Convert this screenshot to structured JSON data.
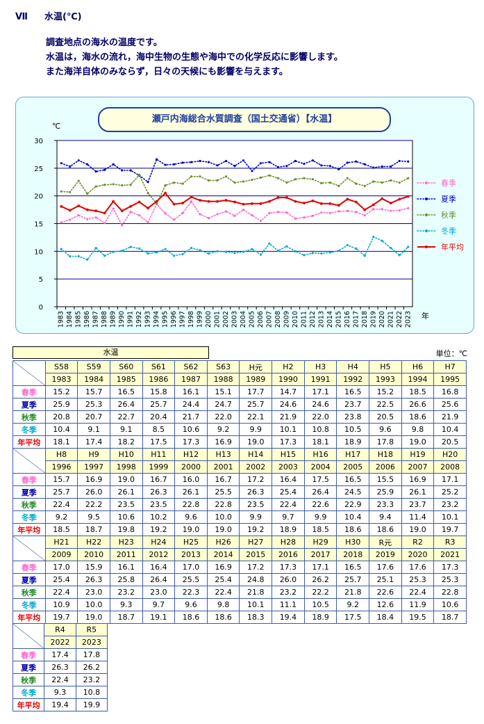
{
  "section": {
    "number": "Ⅶ",
    "title": "水温(℃)"
  },
  "intro": [
    "調査地点の海水の温度です。",
    "水温は，海水の流れ，海中生物の生態や海中での化学反応に影響します。",
    "また海洋自体のみならず，日々の天候にも影響を与えます。"
  ],
  "chart_data": {
    "type": "line",
    "title": "瀬戸内海総合水質調査（国土交通省）【水温】",
    "ylabel": "℃",
    "xlabel": "年",
    "ylim": [
      0,
      30
    ],
    "yticks": [
      0,
      5,
      10,
      15,
      20,
      25,
      30
    ],
    "grid": true,
    "legend_position": "right",
    "x": [
      1983,
      1984,
      1985,
      1986,
      1987,
      1988,
      1989,
      1990,
      1991,
      1992,
      1993,
      1994,
      1995,
      1996,
      1997,
      1998,
      1999,
      2000,
      2001,
      2002,
      2003,
      2004,
      2005,
      2006,
      2007,
      2008,
      2009,
      2010,
      2011,
      2012,
      2013,
      2014,
      2015,
      2016,
      2017,
      2018,
      2019,
      2020,
      2021,
      2022,
      2023
    ],
    "series": [
      {
        "name": "春季",
        "color": "#ff66cc",
        "style": "dotted",
        "values": [
          15.2,
          15.7,
          16.5,
          15.8,
          16.1,
          15.1,
          17.7,
          14.7,
          17.1,
          16.5,
          15.2,
          18.5,
          16.8,
          15.7,
          16.9,
          19.0,
          16.7,
          16.0,
          16.7,
          17.2,
          16.4,
          17.5,
          16.5,
          15.5,
          16.9,
          17.1,
          17.0,
          15.9,
          16.1,
          16.4,
          17.0,
          16.9,
          17.2,
          17.3,
          17.1,
          16.5,
          17.6,
          17.6,
          17.3,
          17.4,
          17.8
        ]
      },
      {
        "name": "夏季",
        "color": "#0000cc",
        "style": "dotted",
        "values": [
          25.9,
          25.3,
          26.4,
          25.7,
          24.4,
          24.7,
          25.7,
          24.6,
          24.6,
          23.7,
          22.5,
          26.6,
          25.6,
          25.7,
          26.0,
          26.1,
          26.3,
          26.1,
          25.5,
          26.3,
          25.4,
          26.4,
          24.5,
          25.9,
          26.1,
          25.2,
          25.4,
          26.3,
          25.8,
          26.4,
          25.5,
          25.4,
          24.8,
          26.0,
          26.2,
          25.7,
          25.1,
          25.3,
          25.3,
          26.3,
          26.2
        ]
      },
      {
        "name": "秋季",
        "color": "#6b8e23",
        "style": "dotted",
        "values": [
          20.8,
          20.7,
          22.7,
          20.4,
          21.7,
          22.0,
          22.1,
          21.9,
          22.0,
          23.8,
          20.5,
          18.6,
          21.9,
          22.4,
          22.2,
          23.5,
          23.5,
          22.8,
          22.8,
          23.5,
          22.4,
          22.6,
          22.9,
          23.3,
          23.7,
          23.2,
          22.4,
          23.0,
          23.2,
          23.0,
          22.3,
          22.4,
          21.8,
          23.2,
          22.2,
          21.8,
          22.6,
          22.4,
          22.8,
          22.4,
          23.2
        ]
      },
      {
        "name": "冬季",
        "color": "#00aacc",
        "style": "dotted",
        "values": [
          10.4,
          9.1,
          9.1,
          8.5,
          10.6,
          9.2,
          9.9,
          10.1,
          10.8,
          10.5,
          9.6,
          9.8,
          10.4,
          9.2,
          9.5,
          10.6,
          10.2,
          9.6,
          10.0,
          9.9,
          9.7,
          9.9,
          10.4,
          9.4,
          11.4,
          10.1,
          10.9,
          10.0,
          9.3,
          9.7,
          9.6,
          9.8,
          10.1,
          11.1,
          10.5,
          9.2,
          12.6,
          11.9,
          10.6,
          9.3,
          10.8
        ]
      },
      {
        "name": "年平均",
        "color": "#e00000",
        "style": "solid",
        "values": [
          18.1,
          17.4,
          18.2,
          17.5,
          17.3,
          16.9,
          19.0,
          17.3,
          18.1,
          18.9,
          17.8,
          19.0,
          20.5,
          18.5,
          18.7,
          19.8,
          19.2,
          19.0,
          19.0,
          19.2,
          18.9,
          18.5,
          18.6,
          18.6,
          19.0,
          19.7,
          19.7,
          19.0,
          18.7,
          19.1,
          18.6,
          18.6,
          18.3,
          19.4,
          18.9,
          17.5,
          18.4,
          19.5,
          18.7,
          19.4,
          19.9
        ]
      }
    ]
  },
  "table": {
    "caption": "水温",
    "unit": "単位：℃",
    "row_labels": [
      "春季",
      "夏季",
      "秋季",
      "冬季",
      "年平均"
    ],
    "row_colors": [
      "#ff66cc",
      "#0000aa",
      "#228b22",
      "#00aacc",
      "#e00000"
    ],
    "blocks": [
      {
        "eras": [
          "S58",
          "S59",
          "S60",
          "S61",
          "S62",
          "S63",
          "H元",
          "H2",
          "H3",
          "H4",
          "H5",
          "H6",
          "H7"
        ],
        "years": [
          "1983",
          "1984",
          "1985",
          "1986",
          "1987",
          "1988",
          "1989",
          "1990",
          "1991",
          "1992",
          "1993",
          "1994",
          "1995"
        ]
      },
      {
        "eras": [
          "H8",
          "H9",
          "H10",
          "H11",
          "H12",
          "H13",
          "H14",
          "H15",
          "H16",
          "H17",
          "H18",
          "H19",
          "H20"
        ],
        "years": [
          "1996",
          "1997",
          "1998",
          "1999",
          "2000",
          "2001",
          "2002",
          "2003",
          "2004",
          "2005",
          "2006",
          "2007",
          "2008"
        ]
      },
      {
        "eras": [
          "H21",
          "H22",
          "H23",
          "H24",
          "H25",
          "H26",
          "H27",
          "H28",
          "H29",
          "H30",
          "R元",
          "R2",
          "R3"
        ],
        "years": [
          "2009",
          "2010",
          "2011",
          "2012",
          "2013",
          "2014",
          "2015",
          "2016",
          "2017",
          "2018",
          "2019",
          "2020",
          "2021"
        ]
      },
      {
        "eras": [
          "R4",
          "R5"
        ],
        "years": [
          "2022",
          "2023"
        ]
      }
    ],
    "values": [
      [
        "15.2",
        "15.7",
        "16.5",
        "15.8",
        "16.1",
        "15.1",
        "17.7",
        "14.7",
        "17.1",
        "16.5",
        "15.2",
        "18.5",
        "16.8",
        "15.7",
        "16.9",
        "19.0",
        "16.7",
        "16.0",
        "16.7",
        "17.2",
        "16.4",
        "17.5",
        "16.5",
        "15.5",
        "16.9",
        "17.1",
        "17.0",
        "15.9",
        "16.1",
        "16.4",
        "17.0",
        "16.9",
        "17.2",
        "17.3",
        "17.1",
        "16.5",
        "17.6",
        "17.6",
        "17.3",
        "17.4",
        "17.8"
      ],
      [
        "25.9",
        "25.3",
        "26.4",
        "25.7",
        "24.4",
        "24.7",
        "25.7",
        "24.6",
        "24.6",
        "23.7",
        "22.5",
        "26.6",
        "25.6",
        "25.7",
        "26.0",
        "26.1",
        "26.3",
        "26.1",
        "25.5",
        "26.3",
        "25.4",
        "26.4",
        "24.5",
        "25.9",
        "26.1",
        "25.2",
        "25.4",
        "26.3",
        "25.8",
        "26.4",
        "25.5",
        "25.4",
        "24.8",
        "26.0",
        "26.2",
        "25.7",
        "25.1",
        "25.3",
        "25.3",
        "26.3",
        "26.2"
      ],
      [
        "20.8",
        "20.7",
        "22.7",
        "20.4",
        "21.7",
        "22.0",
        "22.1",
        "21.9",
        "22.0",
        "23.8",
        "20.5",
        "18.6",
        "21.9",
        "22.4",
        "22.2",
        "23.5",
        "23.5",
        "22.8",
        "22.8",
        "23.5",
        "22.4",
        "22.6",
        "22.9",
        "23.3",
        "23.7",
        "23.2",
        "22.4",
        "23.0",
        "23.2",
        "23.0",
        "22.3",
        "22.4",
        "21.8",
        "23.2",
        "22.2",
        "21.8",
        "22.6",
        "22.4",
        "22.8",
        "22.4",
        "23.2"
      ],
      [
        "10.4",
        "9.1",
        "9.1",
        "8.5",
        "10.6",
        "9.2",
        "9.9",
        "10.1",
        "10.8",
        "10.5",
        "9.6",
        "9.8",
        "10.4",
        "9.2",
        "9.5",
        "10.6",
        "10.2",
        "9.6",
        "10.0",
        "9.9",
        "9.7",
        "9.9",
        "10.4",
        "9.4",
        "11.4",
        "10.1",
        "10.9",
        "10.0",
        "9.3",
        "9.7",
        "9.6",
        "9.8",
        "10.1",
        "11.1",
        "10.5",
        "9.2",
        "12.6",
        "11.9",
        "10.6",
        "9.3",
        "10.8"
      ],
      [
        "18.1",
        "17.4",
        "18.2",
        "17.5",
        "17.3",
        "16.9",
        "19.0",
        "17.3",
        "18.1",
        "18.9",
        "17.8",
        "19.0",
        "20.5",
        "18.5",
        "18.7",
        "19.8",
        "19.2",
        "19.0",
        "19.0",
        "19.2",
        "18.9",
        "18.5",
        "18.6",
        "18.6",
        "19.0",
        "19.7",
        "19.7",
        "19.0",
        "18.7",
        "19.1",
        "18.6",
        "18.6",
        "18.3",
        "19.4",
        "18.9",
        "17.5",
        "18.4",
        "19.5",
        "18.7",
        "19.4",
        "19.9"
      ]
    ]
  }
}
